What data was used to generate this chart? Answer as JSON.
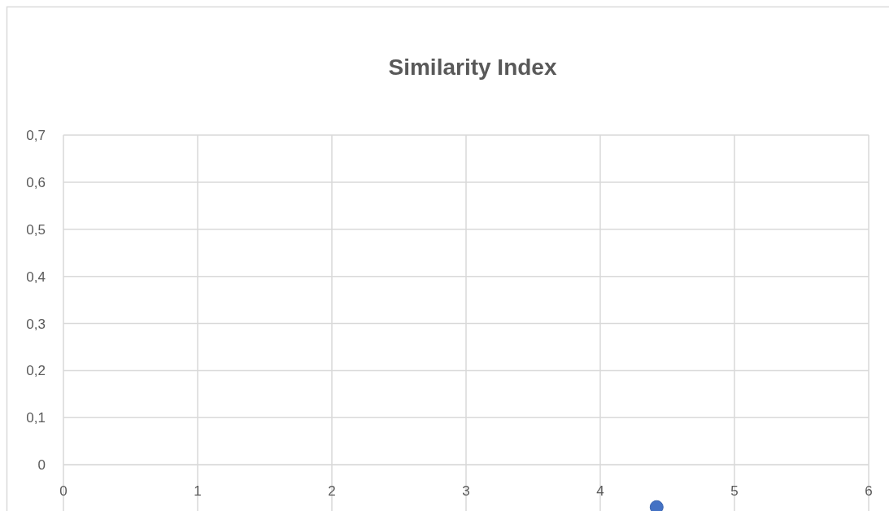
{
  "chart_data": {
    "type": "scatter",
    "title": "Similarity Index",
    "x": [
      4.42
    ],
    "series": [
      {
        "color": "#4472c4",
        "values": [
          -0.09
        ]
      }
    ],
    "xlim": [
      0,
      6
    ],
    "xticks": [
      0,
      1,
      2,
      3,
      4,
      5,
      6
    ],
    "ylim": [
      -0.1,
      0.7
    ],
    "yticks": [
      {
        "value": 0,
        "label": "0"
      },
      {
        "value": 0.1,
        "label": "0,1"
      },
      {
        "value": 0.2,
        "label": "0,2"
      },
      {
        "value": 0.3,
        "label": "0,3"
      },
      {
        "value": 0.4,
        "label": "0,4"
      },
      {
        "value": 0.5,
        "label": "0,5"
      },
      {
        "value": 0.6,
        "label": "0,6"
      },
      {
        "value": 0.7,
        "label": "0,7"
      }
    ],
    "grid": true,
    "marker": "circle"
  }
}
